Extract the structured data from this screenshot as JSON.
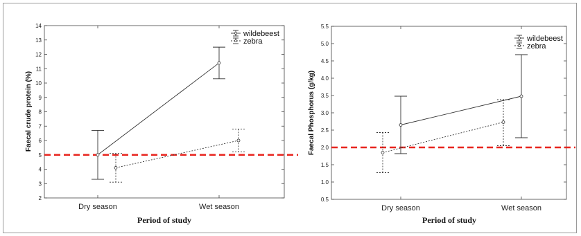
{
  "chart_data": [
    {
      "type": "line",
      "title": "",
      "xlabel": "Period of study",
      "ylabel": "Faecal crude protein (%)",
      "categories": [
        "Dry season",
        "Wet season"
      ],
      "ylim": [
        2,
        14
      ],
      "yticks": [
        "2",
        "3",
        "4",
        "5",
        "6",
        "7",
        "8",
        "9",
        "10",
        "11",
        "12",
        "13",
        "14"
      ],
      "reference_line": {
        "value": 5,
        "color": "#e8251f",
        "style": "dashed"
      },
      "legend": "top-right",
      "series": [
        {
          "name": "wildebeest",
          "values": [
            5.0,
            11.4
          ],
          "error_low": [
            3.3,
            10.3
          ],
          "error_high": [
            6.7,
            12.5
          ],
          "style": "solid"
        },
        {
          "name": "zebra",
          "values": [
            4.1,
            6.0
          ],
          "error_low": [
            3.1,
            5.2
          ],
          "error_high": [
            5.1,
            6.8
          ],
          "style": "dotted"
        }
      ]
    },
    {
      "type": "line",
      "title": "",
      "xlabel": "Period of study",
      "ylabel": "Faecal Phosphorus (g/kg)",
      "categories": [
        "Dry season",
        "Wet season"
      ],
      "ylim": [
        0.5,
        5.5
      ],
      "yticks": [
        "0.5",
        "1.0",
        "1.5",
        "2.0",
        "2.5",
        "3.0",
        "3.5",
        "4.0",
        "4.5",
        "5.0",
        "5.5"
      ],
      "reference_line": {
        "value": 2.0,
        "color": "#e8251f",
        "style": "dashed"
      },
      "legend": "top-right",
      "series": [
        {
          "name": "wildebeest",
          "values": [
            2.65,
            3.48
          ],
          "error_low": [
            1.82,
            2.28
          ],
          "error_high": [
            3.48,
            4.68
          ],
          "style": "solid"
        },
        {
          "name": "zebra",
          "values": [
            1.85,
            2.73
          ],
          "error_low": [
            1.27,
            2.05
          ],
          "error_high": [
            2.43,
            3.38
          ],
          "style": "dotted"
        }
      ]
    }
  ]
}
